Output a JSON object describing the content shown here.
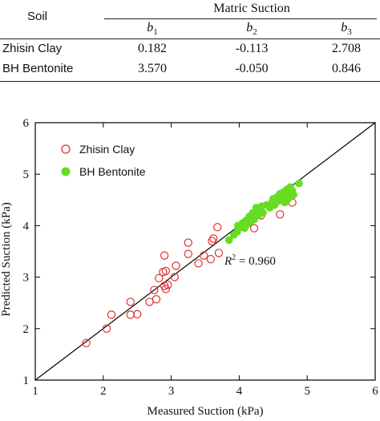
{
  "table": {
    "header_soil": "Soil",
    "header_group": "Matric Suction",
    "col_symbol": "b",
    "col_subs": [
      "1",
      "2",
      "3"
    ],
    "rows": [
      {
        "soil": "Zhisin Clay",
        "values": [
          "0.182",
          "-0.113",
          "2.708"
        ]
      },
      {
        "soil": "BH Bentonite",
        "values": [
          "3.570",
          "-0.050",
          "0.846"
        ]
      }
    ]
  },
  "chart_data": {
    "type": "scatter",
    "xlabel": "Measured Suction (kPa)",
    "ylabel": "Predicted Suction (kPa)",
    "xlim": [
      1,
      6
    ],
    "ylim": [
      1,
      6
    ],
    "xticks": [
      "1",
      "2",
      "3",
      "4",
      "5",
      "6"
    ],
    "yticks": [
      "1",
      "2",
      "3",
      "4",
      "5",
      "6"
    ],
    "legend_position": "top-left",
    "annotation": {
      "symbol": "R",
      "exponent": "2",
      "text": " = 0.960"
    },
    "reference_line": {
      "from": [
        1,
        1
      ],
      "to": [
        6,
        6
      ]
    },
    "series": [
      {
        "name": "Zhisin Clay",
        "marker": "open-circle",
        "color": "#e03030",
        "points": [
          [
            1.75,
            1.72
          ],
          [
            2.05,
            2.0
          ],
          [
            2.12,
            2.27
          ],
          [
            2.4,
            2.27
          ],
          [
            2.4,
            2.52
          ],
          [
            2.5,
            2.28
          ],
          [
            2.68,
            2.52
          ],
          [
            2.75,
            2.75
          ],
          [
            2.78,
            2.57
          ],
          [
            2.82,
            2.98
          ],
          [
            2.9,
            2.83
          ],
          [
            2.92,
            2.77
          ],
          [
            2.95,
            2.85
          ],
          [
            2.88,
            3.1
          ],
          [
            2.92,
            3.12
          ],
          [
            2.9,
            3.42
          ],
          [
            3.05,
            3.0
          ],
          [
            3.07,
            3.22
          ],
          [
            3.25,
            3.45
          ],
          [
            3.25,
            3.67
          ],
          [
            3.4,
            3.27
          ],
          [
            3.48,
            3.42
          ],
          [
            3.58,
            3.35
          ],
          [
            3.6,
            3.7
          ],
          [
            3.62,
            3.75
          ],
          [
            3.68,
            3.97
          ],
          [
            3.7,
            3.47
          ],
          [
            4.22,
            3.95
          ],
          [
            4.32,
            4.2
          ],
          [
            4.6,
            4.22
          ],
          [
            4.78,
            4.45
          ]
        ]
      },
      {
        "name": "BH Bentonite",
        "marker": "filled-circle",
        "color": "#66dd22",
        "points": [
          [
            3.85,
            3.72
          ],
          [
            3.92,
            3.82
          ],
          [
            3.97,
            3.88
          ],
          [
            3.98,
            4.0
          ],
          [
            4.03,
            3.97
          ],
          [
            4.05,
            4.05
          ],
          [
            4.08,
            3.95
          ],
          [
            4.1,
            4.1
          ],
          [
            4.12,
            4.03
          ],
          [
            4.15,
            4.18
          ],
          [
            4.17,
            4.08
          ],
          [
            4.2,
            4.25
          ],
          [
            4.22,
            4.12
          ],
          [
            4.25,
            4.35
          ],
          [
            4.28,
            4.2
          ],
          [
            4.3,
            4.3
          ],
          [
            4.33,
            4.38
          ],
          [
            4.35,
            4.25
          ],
          [
            4.4,
            4.4
          ],
          [
            4.45,
            4.35
          ],
          [
            4.48,
            4.45
          ],
          [
            4.5,
            4.52
          ],
          [
            4.52,
            4.4
          ],
          [
            4.55,
            4.55
          ],
          [
            4.58,
            4.48
          ],
          [
            4.6,
            4.62
          ],
          [
            4.62,
            4.52
          ],
          [
            4.65,
            4.65
          ],
          [
            4.68,
            4.57
          ],
          [
            4.7,
            4.7
          ],
          [
            4.72,
            4.62
          ],
          [
            4.75,
            4.75
          ],
          [
            4.78,
            4.68
          ],
          [
            4.8,
            4.6
          ],
          [
            4.88,
            4.82
          ],
          [
            4.67,
            4.45
          ],
          [
            4.72,
            4.52
          ]
        ]
      }
    ]
  }
}
